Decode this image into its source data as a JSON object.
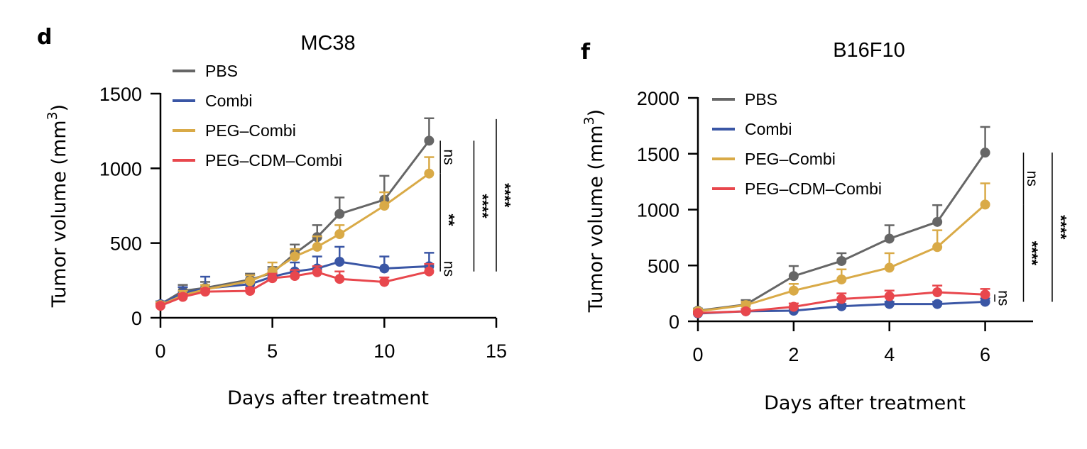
{
  "colors": {
    "PBS": "#666666",
    "Combi": "#3a56a5",
    "PEG–Combi": "#d9aa47",
    "PEG–CDM–Combi": "#e8474d"
  },
  "chart_data": [
    {
      "panel_letter": "d",
      "type": "line",
      "title": "MC38",
      "xlabel": "Days after treatment",
      "ylabel_main": "Tumor volume (mm",
      "ylabel_sup": "3",
      "ylabel_close": ")",
      "xlim": [
        0,
        15
      ],
      "ylim": [
        0,
        1500
      ],
      "xticks": [
        0,
        5,
        10,
        15
      ],
      "yticks": [
        0,
        500,
        1000,
        1500
      ],
      "x": [
        0,
        1,
        2,
        4,
        5,
        6,
        7,
        8,
        10,
        12
      ],
      "series": [
        {
          "name": "PBS",
          "values": [
            90,
            180,
            200,
            255,
            300,
            430,
            540,
            695,
            790,
            1185
          ],
          "err": [
            20,
            40,
            40,
            40,
            40,
            60,
            80,
            110,
            160,
            150
          ]
        },
        {
          "name": "Combi",
          "values": [
            90,
            165,
            195,
            225,
            275,
            310,
            330,
            375,
            330,
            345
          ],
          "err": [
            20,
            40,
            80,
            60,
            50,
            60,
            80,
            100,
            80,
            90
          ]
        },
        {
          "name": "PEG–Combi",
          "values": [
            85,
            150,
            190,
            245,
            310,
            410,
            475,
            560,
            750,
            965
          ],
          "err": [
            20,
            30,
            30,
            40,
            60,
            50,
            70,
            60,
            90,
            110
          ]
        },
        {
          "name": "PEG–CDM–Combi",
          "values": [
            80,
            140,
            175,
            180,
            265,
            280,
            305,
            260,
            240,
            310
          ],
          "err": [
            15,
            20,
            20,
            20,
            30,
            40,
            40,
            50,
            30,
            50
          ]
        }
      ],
      "significance": [
        {
          "label": "ns",
          "y1": 965,
          "y2": 1185,
          "bar_x": 12.5
        },
        {
          "label": "**",
          "y1": 345,
          "y2": 965,
          "bar_x": 12.5
        },
        {
          "label": "ns",
          "y1": 310,
          "y2": 345,
          "bar_x": 12.5
        },
        {
          "label": "****",
          "y1": 310,
          "y2": 1185,
          "bar_x": 14.0
        },
        {
          "label": "****",
          "y1": 310,
          "y2": 1330,
          "bar_x": 15.0
        }
      ]
    },
    {
      "panel_letter": "f",
      "type": "line",
      "title": "B16F10",
      "xlabel": "Days after treatment",
      "ylabel_main": "Tumor volume (mm",
      "ylabel_sup": "3",
      "ylabel_close": ")",
      "xlim": [
        0,
        7
      ],
      "ylim": [
        0,
        2000
      ],
      "xticks": [
        0,
        2,
        4,
        6
      ],
      "yticks": [
        0,
        500,
        1000,
        1500,
        2000
      ],
      "x": [
        0,
        1,
        2,
        3,
        4,
        5,
        6
      ],
      "series": [
        {
          "name": "PBS",
          "values": [
            95,
            150,
            405,
            540,
            740,
            890,
            1510
          ],
          "err": [
            20,
            40,
            90,
            70,
            120,
            150,
            230
          ]
        },
        {
          "name": "Combi",
          "values": [
            70,
            90,
            95,
            135,
            155,
            155,
            175
          ],
          "err": [
            10,
            20,
            20,
            20,
            20,
            20,
            30
          ]
        },
        {
          "name": "PEG–Combi",
          "values": [
            90,
            145,
            275,
            375,
            480,
            665,
            1045
          ],
          "err": [
            20,
            30,
            60,
            90,
            130,
            150,
            190
          ]
        },
        {
          "name": "PEG–CDM–Combi",
          "values": [
            75,
            90,
            130,
            200,
            225,
            260,
            240
          ],
          "err": [
            10,
            20,
            30,
            50,
            50,
            60,
            50
          ]
        }
      ],
      "significance": [
        {
          "label": "ns",
          "y1": 1045,
          "y2": 1510,
          "bar_x": 6.8
        },
        {
          "label": "****",
          "y1": 175,
          "y2": 1045,
          "bar_x": 6.8
        },
        {
          "label": "ns",
          "y1": 175,
          "y2": 240,
          "bar_x": 6.2
        },
        {
          "label": "****",
          "y1": 175,
          "y2": 1510,
          "bar_x": 7.4
        }
      ]
    }
  ]
}
